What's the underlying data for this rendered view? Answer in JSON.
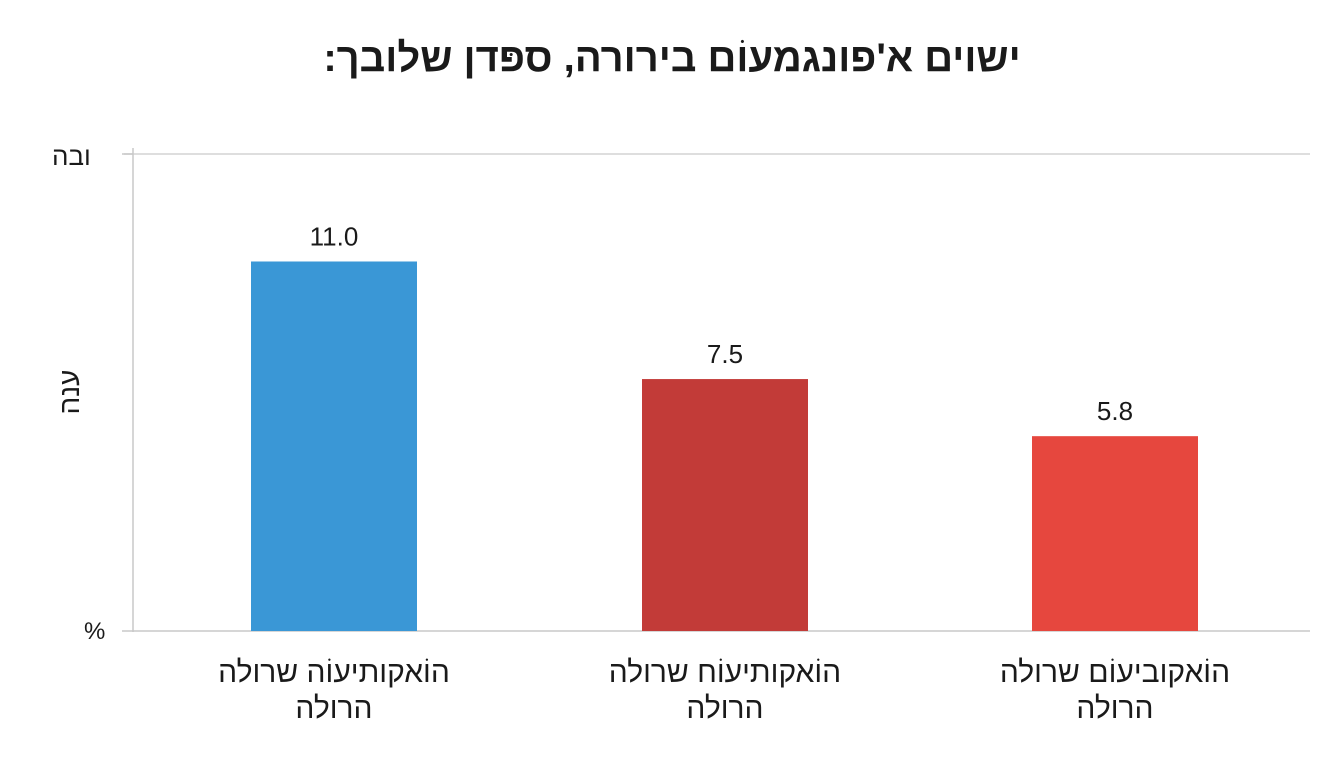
{
  "chart_data": {
    "type": "bar",
    "title": "ישוים א'פונגמעוֹם בירורה, ספּדן שלובך:",
    "ylabel": "ענה",
    "y_top_label": "ובה",
    "y_bottom_label": "%",
    "ylim": [
      0,
      14.2
    ],
    "grid": "horizontal lines at top and bottom only",
    "categories": [
      "הוֹאקותיעוֹה שרולה הרולה",
      "הוֹאקותיעוֹח שרולה הרולה",
      "הוֹאקוביעוֹם שרולה הרולה"
    ],
    "category_lines": [
      [
        "הוֹאקותיעוֹה שרולה",
        "הרולה"
      ],
      [
        "הוֹאקותיעוֹח שרולה",
        "הרולה"
      ],
      [
        "הוֹאקוביעוֹם שרולה",
        "הרולה"
      ]
    ],
    "values": [
      11.0,
      7.5,
      5.8
    ],
    "value_labels": [
      "11.0",
      "7.5",
      "5.8"
    ],
    "colors": [
      "#3a97d6",
      "#c23b38",
      "#e6473e"
    ]
  }
}
